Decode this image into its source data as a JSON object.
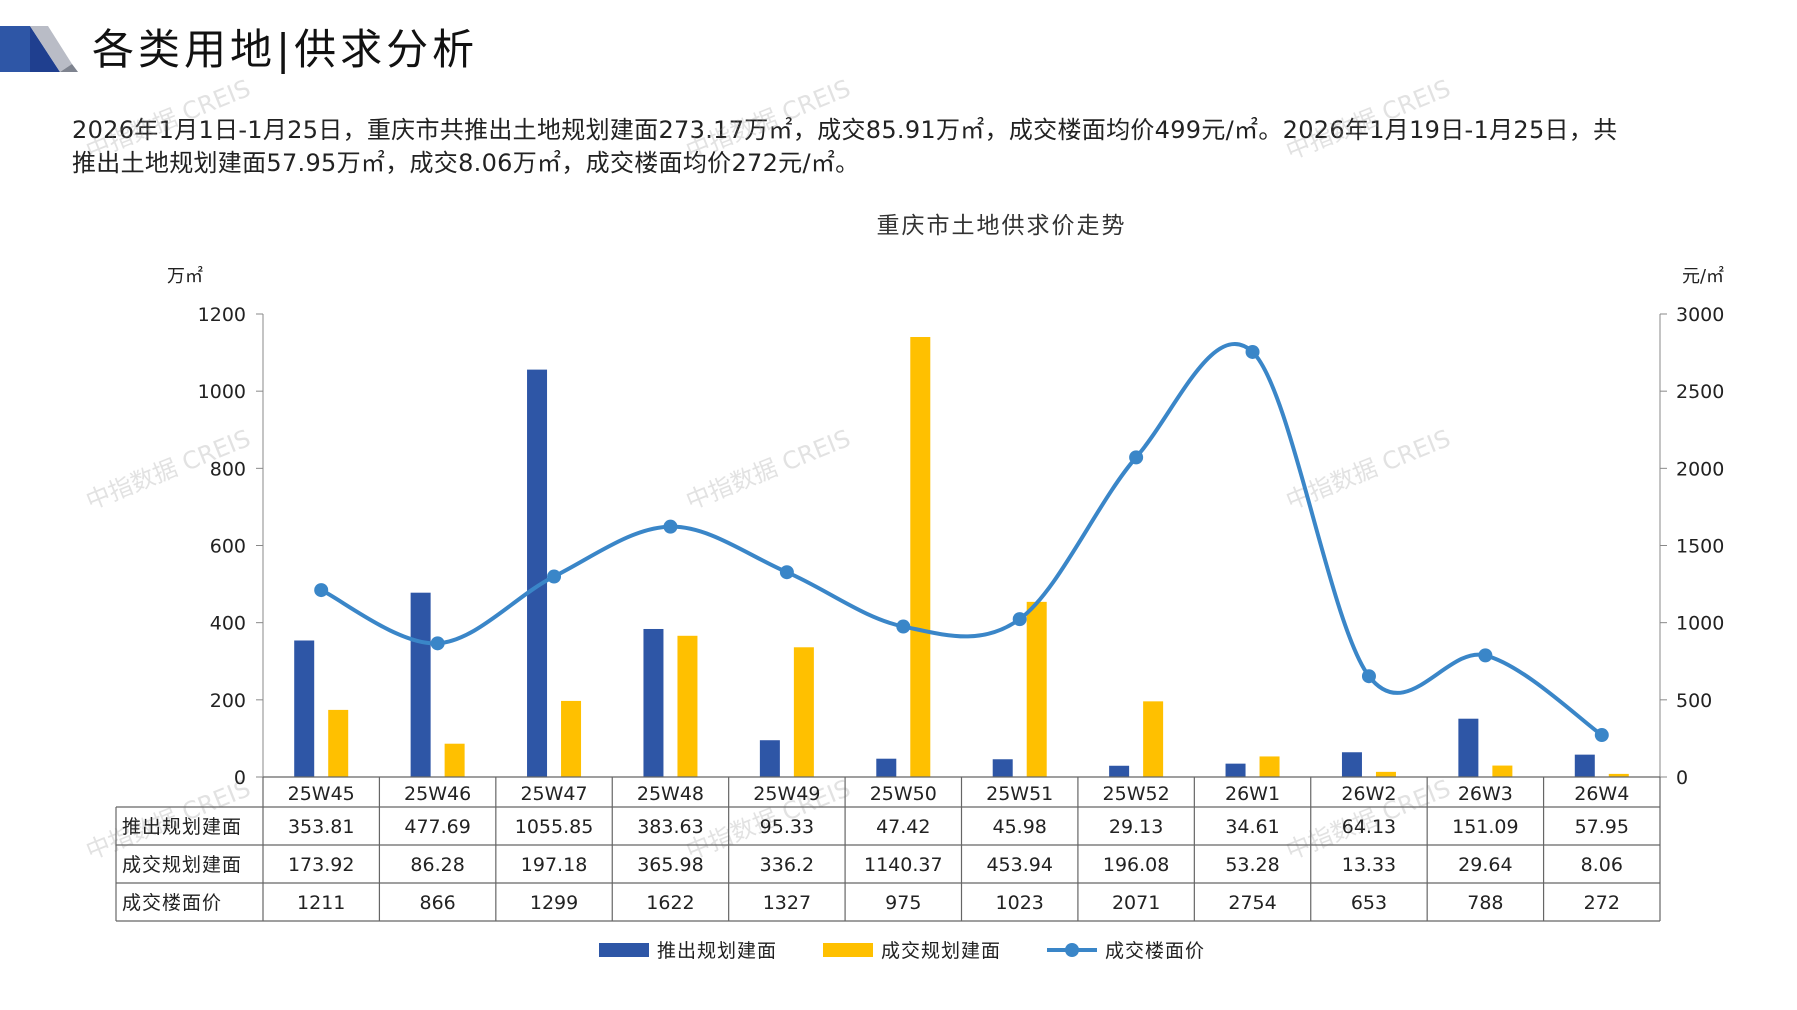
{
  "header": {
    "title": "各类用地|供求分析"
  },
  "summary": {
    "line1": "2026年1月1日-1月25日，重庆市共推出土地规划建面273.17万㎡，成交85.91万㎡，成交楼面均价499元/㎡。2026年1月19日-1月25日，共",
    "line2": "推出土地规划建面57.95万㎡，成交8.06万㎡，成交楼面均价272元/㎡。"
  },
  "watermark": "中指数据 CREIS",
  "colors": {
    "supply": "#2E56A6",
    "deal": "#FFC000",
    "price": "#3A86C8",
    "accent_dark": "#1F3F8F"
  },
  "chart_data": {
    "type": "bar",
    "title": "重庆市土地供求价走势",
    "ylabel_left": "万㎡",
    "ylabel_right": "元/㎡",
    "ylim_left": [
      0,
      1200
    ],
    "ylim_right": [
      0,
      3000
    ],
    "yticks_left": [
      "0",
      "200",
      "400",
      "600",
      "800",
      "1000",
      "1200"
    ],
    "yticks_right": [
      "0",
      "500",
      "1000",
      "1500",
      "2000",
      "2500",
      "3000"
    ],
    "categories": [
      "25W45",
      "25W46",
      "25W47",
      "25W48",
      "25W49",
      "25W50",
      "25W51",
      "25W52",
      "26W1",
      "26W2",
      "26W3",
      "26W4"
    ],
    "series": [
      {
        "name": "推出规划建面",
        "type": "bar",
        "axis": "left",
        "values": [
          353.81,
          477.69,
          1055.85,
          383.63,
          95.33,
          47.42,
          45.98,
          29.13,
          34.61,
          64.13,
          151.09,
          57.95
        ],
        "labels": [
          "353.81",
          "477.69",
          "1055.85",
          "383.63",
          "95.33",
          "47.42",
          "45.98",
          "29.13",
          "34.61",
          "64.13",
          "151.09",
          "57.95"
        ]
      },
      {
        "name": "成交规划建面",
        "type": "bar",
        "axis": "left",
        "values": [
          173.92,
          86.28,
          197.18,
          365.98,
          336.2,
          1140.37,
          453.94,
          196.08,
          53.28,
          13.33,
          29.64,
          8.06
        ],
        "labels": [
          "173.92",
          "86.28",
          "197.18",
          "365.98",
          "336.2",
          "1140.37",
          "453.94",
          "196.08",
          "53.28",
          "13.33",
          "29.64",
          "8.06"
        ]
      },
      {
        "name": "成交楼面价",
        "type": "line",
        "axis": "right",
        "smooth": true,
        "values": [
          1211,
          866,
          1299,
          1622,
          1327,
          975,
          1023,
          2071,
          2754,
          653,
          788,
          272
        ],
        "labels": [
          "1211",
          "866",
          "1299",
          "1622",
          "1327",
          "975",
          "1023",
          "2071",
          "2754",
          "653",
          "788",
          "272"
        ]
      }
    ],
    "legend_position": "bottom",
    "grid": false,
    "data_table": true
  }
}
